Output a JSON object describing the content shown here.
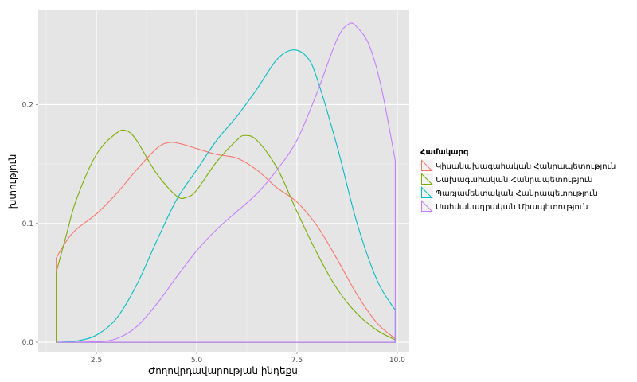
{
  "chart_data": {
    "type": "line",
    "subtype": "density",
    "title": "",
    "xlabel": "Ժողովրդավարության ինդեքս",
    "ylabel": "խտություն",
    "xlim": [
      1.05,
      10.3
    ],
    "ylim": [
      -0.008,
      0.28
    ],
    "x_ticks": [
      {
        "value": 2.5,
        "label": "2.5"
      },
      {
        "value": 5.0,
        "label": "5.0"
      },
      {
        "value": 7.5,
        "label": "7.5"
      },
      {
        "value": 10.0,
        "label": "10.0"
      }
    ],
    "y_ticks": [
      {
        "value": 0.0,
        "label": "0.0"
      },
      {
        "value": 0.1,
        "label": "0.1"
      },
      {
        "value": 0.2,
        "label": "0.2"
      }
    ],
    "grid": true,
    "legend": {
      "title": "Համակարգ",
      "position": "right"
    },
    "series": [
      {
        "name": "Կիսանախագահական Հանրապետություն",
        "color": "#F8766D",
        "points": [
          [
            1.5,
            0.071
          ],
          [
            1.75,
            0.085
          ],
          [
            2.0,
            0.095
          ],
          [
            2.5,
            0.108
          ],
          [
            3.0,
            0.125
          ],
          [
            3.5,
            0.145
          ],
          [
            4.0,
            0.163
          ],
          [
            4.3,
            0.168
          ],
          [
            4.6,
            0.167
          ],
          [
            5.0,
            0.163
          ],
          [
            5.5,
            0.158
          ],
          [
            6.0,
            0.155
          ],
          [
            6.5,
            0.145
          ],
          [
            7.0,
            0.13
          ],
          [
            7.5,
            0.118
          ],
          [
            8.0,
            0.098
          ],
          [
            8.5,
            0.07
          ],
          [
            9.0,
            0.04
          ],
          [
            9.5,
            0.016
          ],
          [
            9.95,
            0.003
          ]
        ]
      },
      {
        "name": "Նախագահական Հանրապետություն",
        "color": "#7CAE00",
        "points": [
          [
            1.5,
            0.059
          ],
          [
            1.75,
            0.09
          ],
          [
            2.0,
            0.12
          ],
          [
            2.5,
            0.158
          ],
          [
            3.0,
            0.176
          ],
          [
            3.25,
            0.178
          ],
          [
            3.5,
            0.17
          ],
          [
            4.0,
            0.142
          ],
          [
            4.5,
            0.123
          ],
          [
            4.75,
            0.122
          ],
          [
            5.0,
            0.128
          ],
          [
            5.5,
            0.152
          ],
          [
            6.0,
            0.17
          ],
          [
            6.2,
            0.174
          ],
          [
            6.5,
            0.17
          ],
          [
            7.0,
            0.147
          ],
          [
            7.5,
            0.11
          ],
          [
            8.0,
            0.075
          ],
          [
            8.5,
            0.045
          ],
          [
            9.0,
            0.024
          ],
          [
            9.5,
            0.01
          ],
          [
            9.95,
            0.002
          ]
        ]
      },
      {
        "name": "Պառլամենտական Հանրապետություն",
        "color": "#00BFC4",
        "points": [
          [
            1.5,
            0.0
          ],
          [
            2.0,
            0.001
          ],
          [
            2.5,
            0.006
          ],
          [
            3.0,
            0.02
          ],
          [
            3.5,
            0.048
          ],
          [
            4.0,
            0.085
          ],
          [
            4.5,
            0.12
          ],
          [
            5.0,
            0.145
          ],
          [
            5.5,
            0.17
          ],
          [
            6.0,
            0.19
          ],
          [
            6.5,
            0.213
          ],
          [
            7.0,
            0.238
          ],
          [
            7.4,
            0.246
          ],
          [
            7.75,
            0.24
          ],
          [
            8.0,
            0.222
          ],
          [
            8.5,
            0.165
          ],
          [
            9.0,
            0.1
          ],
          [
            9.5,
            0.052
          ],
          [
            9.95,
            0.027
          ]
        ]
      },
      {
        "name": "Սահմանադրական Միապետություն",
        "color": "#C77CFF",
        "points": [
          [
            1.5,
            0.0
          ],
          [
            2.5,
            0.0005
          ],
          [
            3.0,
            0.003
          ],
          [
            3.5,
            0.013
          ],
          [
            4.0,
            0.032
          ],
          [
            4.5,
            0.055
          ],
          [
            5.0,
            0.077
          ],
          [
            5.5,
            0.095
          ],
          [
            6.0,
            0.11
          ],
          [
            6.5,
            0.125
          ],
          [
            7.0,
            0.145
          ],
          [
            7.5,
            0.17
          ],
          [
            8.0,
            0.21
          ],
          [
            8.5,
            0.255
          ],
          [
            8.8,
            0.268
          ],
          [
            9.0,
            0.265
          ],
          [
            9.3,
            0.25
          ],
          [
            9.6,
            0.215
          ],
          [
            9.95,
            0.153
          ]
        ]
      }
    ]
  }
}
